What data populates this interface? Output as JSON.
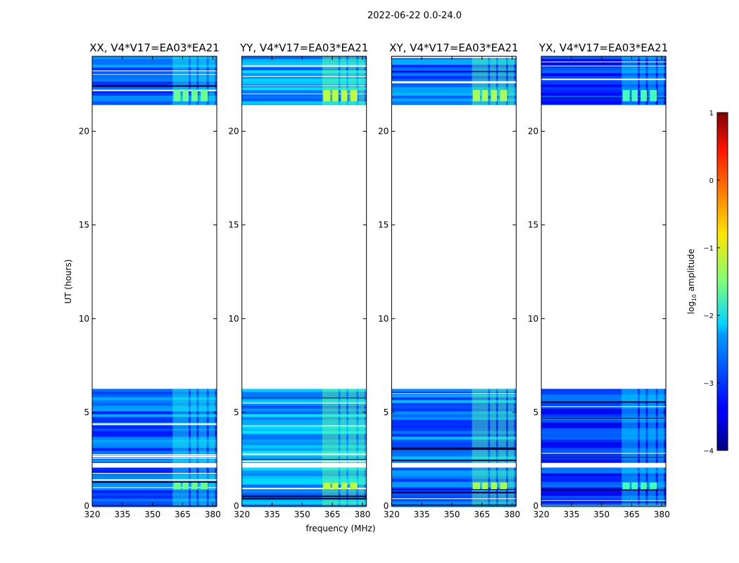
{
  "chart_data": {
    "type": "heatmap",
    "title": "2022-06-22 0.0-24.0",
    "xlabel": "frequency (MHz)",
    "ylabel": "UT (hours)",
    "xlim": [
      320,
      382
    ],
    "ylim": [
      0,
      24
    ],
    "x_ticks": [
      "320",
      "335",
      "350",
      "365",
      "380"
    ],
    "y_ticks": [
      "0",
      "5",
      "10",
      "15",
      "20"
    ],
    "x_tick_values": [
      320,
      335,
      350,
      365,
      380
    ],
    "y_tick_values": [
      0,
      5,
      10,
      15,
      20
    ],
    "data_ut_ranges": [
      [
        0,
        6.25
      ],
      [
        21.4,
        24
      ]
    ],
    "gap_ut_range": [
      6.25,
      21.4
    ],
    "panels": [
      {
        "title": "XX, V4*V17=EA03*EA21",
        "base_level": -2.9,
        "band_level": -1.6
      },
      {
        "title": "YY, V4*V17=EA03*EA21",
        "base_level": -2.6,
        "band_level": -1.2
      },
      {
        "title": "XY, V4*V17=EA03*EA21",
        "base_level": -2.8,
        "band_level": -1.3
      },
      {
        "title": "YX, V4*V17=EA03*EA21",
        "base_level": -3.1,
        "band_level": -1.8
      }
    ],
    "colorbar": {
      "label": "log",
      "label_sub": "10",
      "label_rest": " amplitude",
      "range": [
        -4,
        1
      ],
      "ticks": [
        "1",
        "0",
        "−1",
        "−2",
        "−3",
        "−4"
      ],
      "tick_values": [
        1,
        0,
        -1,
        -2,
        -3,
        -4
      ]
    }
  }
}
